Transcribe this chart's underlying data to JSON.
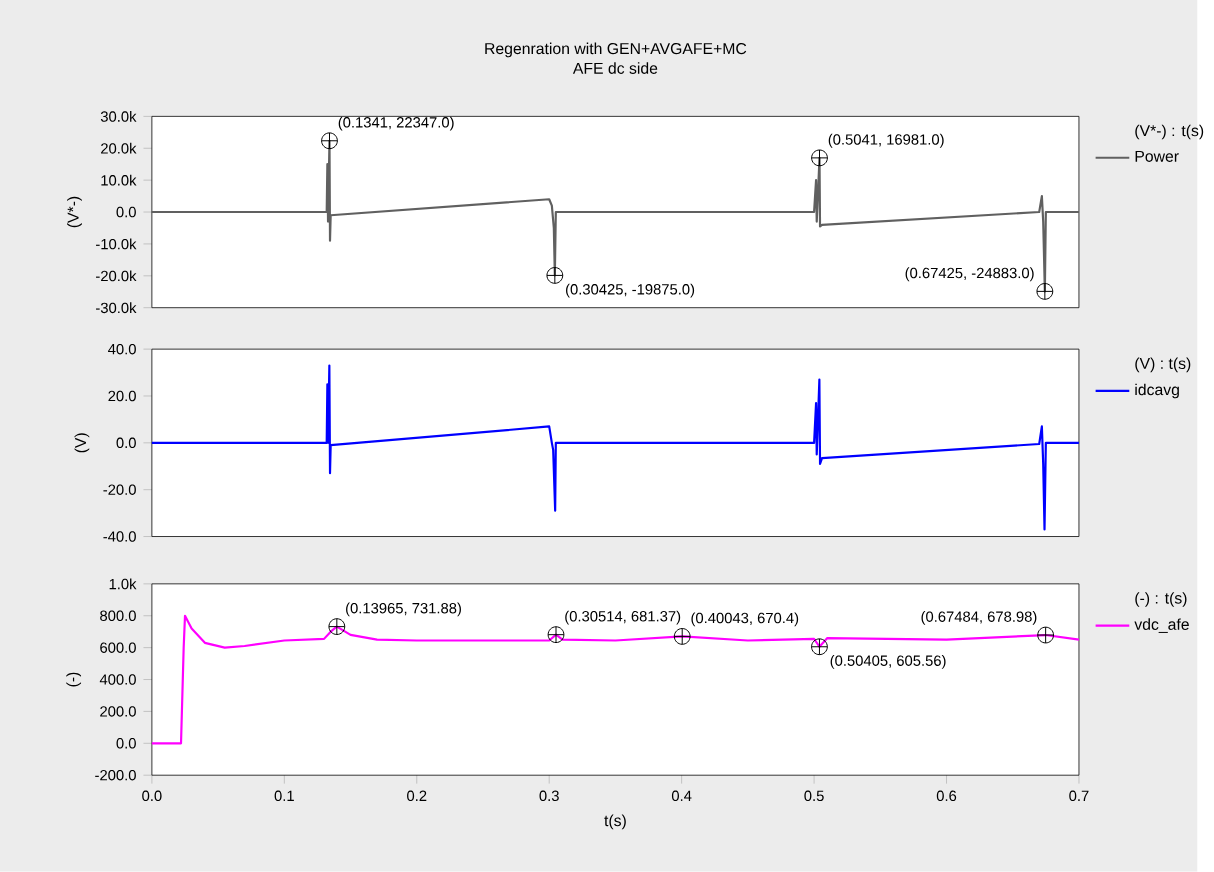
{
  "chart_data": [
    {
      "type": "line",
      "title": "Regenration with GEN+AVGAFE+MC",
      "subtitle": "AFE dc side",
      "ylabel": "(V*-)",
      "legend_title": "(V*-) : t(s)",
      "legend": "right",
      "marker": "none",
      "line_style": "solid",
      "grid": false,
      "tick_labels": "y",
      "xlim": [
        0,
        0.7
      ],
      "ylim": [
        -30000,
        30000
      ],
      "yticks": [
        {
          "value": -30000,
          "label": "-30.0k"
        },
        {
          "value": -20000,
          "label": "-20.0k"
        },
        {
          "value": -10000,
          "label": "-10.0k"
        },
        {
          "value": 0,
          "label": "0.0"
        },
        {
          "value": 10000,
          "label": "10.0k"
        },
        {
          "value": 20000,
          "label": "20.0k"
        },
        {
          "value": 30000,
          "label": "30.0k"
        }
      ],
      "series": [
        {
          "name": "Power",
          "color": "#606060",
          "x": [
            0,
            0.132,
            0.1325,
            0.133,
            0.1341,
            0.1345,
            0.135,
            0.3,
            0.302,
            0.3035,
            0.30425,
            0.305,
            0.5,
            0.5015,
            0.502,
            0.5041,
            0.5045,
            0.506,
            0.67,
            0.672,
            0.673,
            0.67425,
            0.675,
            0.7
          ],
          "values": [
            0,
            0,
            15000,
            -3000,
            22347,
            -9000,
            -1000,
            4000,
            2000,
            -5000,
            -19875,
            0,
            0,
            10000,
            -3000,
            16981,
            -4500,
            -4000,
            0,
            5000,
            -3000,
            -24883,
            0,
            0
          ]
        }
      ],
      "annotations": [
        {
          "text": "(0.1341, 22347.0)",
          "x": 0.1341,
          "y": 22347
        },
        {
          "text": "(0.30425, -19875.0)",
          "x": 0.30425,
          "y": -19875
        },
        {
          "text": "(0.5041, 16981.0)",
          "x": 0.5041,
          "y": 16981
        },
        {
          "text": "(0.67425, -24883.0)",
          "x": 0.67425,
          "y": -24883
        }
      ]
    },
    {
      "type": "line",
      "ylabel": "(V)",
      "legend_title": "(V) : t(s)",
      "legend": "right",
      "marker": "none",
      "line_style": "solid",
      "grid": false,
      "tick_labels": "y",
      "xlim": [
        0,
        0.7
      ],
      "ylim": [
        -40,
        40
      ],
      "yticks": [
        {
          "value": -40,
          "label": "-40.0"
        },
        {
          "value": -20,
          "label": "-20.0"
        },
        {
          "value": 0,
          "label": "0.0"
        },
        {
          "value": 20,
          "label": "20.0"
        },
        {
          "value": 40,
          "label": "40.0"
        }
      ],
      "series": [
        {
          "name": "idcavg",
          "color": "#0000ff",
          "x": [
            0,
            0.132,
            0.1325,
            0.133,
            0.134,
            0.1345,
            0.135,
            0.3,
            0.302,
            0.303,
            0.3045,
            0.305,
            0.5,
            0.5015,
            0.502,
            0.504,
            0.5045,
            0.506,
            0.67,
            0.672,
            0.673,
            0.674,
            0.675,
            0.7
          ],
          "values": [
            0,
            0,
            25,
            0,
            33,
            -13,
            -1,
            7,
            0,
            -3,
            -29,
            0,
            0,
            17,
            -5,
            27,
            -9,
            -6.5,
            -0.5,
            7,
            -9,
            -37,
            0,
            0
          ]
        }
      ]
    },
    {
      "type": "line",
      "xlabel": "t(s)",
      "ylabel": "(-)",
      "legend_title": "(-) : t(s)",
      "legend": "right",
      "marker": "none",
      "line_style": "solid",
      "grid": false,
      "xlim": [
        0,
        0.7
      ],
      "ylim": [
        -200,
        1000
      ],
      "xticks": [
        {
          "value": 0,
          "label": "0.0"
        },
        0.1,
        0.2,
        0.3,
        0.4,
        0.5,
        0.6,
        0.7
      ],
      "yticks": [
        {
          "value": -200,
          "label": "-200.0"
        },
        {
          "value": 0,
          "label": "0.0"
        },
        {
          "value": 200,
          "label": "200.0"
        },
        {
          "value": 400,
          "label": "400.0"
        },
        {
          "value": 600,
          "label": "600.0"
        },
        {
          "value": 800,
          "label": "800.0"
        },
        {
          "value": 1000,
          "label": "1.0k"
        }
      ],
      "series": [
        {
          "name": "vdc_afe",
          "color": "#ff00ff",
          "x": [
            0,
            0.022,
            0.024,
            0.025,
            0.03,
            0.04,
            0.055,
            0.07,
            0.1,
            0.13,
            0.135,
            0.13965,
            0.15,
            0.17,
            0.2,
            0.3,
            0.30514,
            0.31,
            0.35,
            0.40043,
            0.45,
            0.5,
            0.50405,
            0.51,
            0.6,
            0.67484,
            0.7
          ],
          "values": [
            0,
            0,
            600,
            800,
            720,
            630,
            600,
            610,
            645,
            655,
            700,
            731.88,
            680,
            650,
            645,
            645,
            681.37,
            650,
            645,
            670.4,
            645,
            655,
            605.56,
            660,
            650,
            678.98,
            650
          ]
        }
      ],
      "annotations": [
        {
          "text": "(0.13965, 731.88)",
          "x": 0.13965,
          "y": 731.88
        },
        {
          "text": "(0.30514, 681.37)",
          "x": 0.30514,
          "y": 681.37
        },
        {
          "text": "(0.40043, 670.4)",
          "x": 0.40043,
          "y": 670.4
        },
        {
          "text": "(0.50405, 605.56)",
          "x": 0.50405,
          "y": 605.56
        },
        {
          "text": "(0.67484, 678.98)",
          "x": 0.67484,
          "y": 678.98
        }
      ]
    }
  ]
}
